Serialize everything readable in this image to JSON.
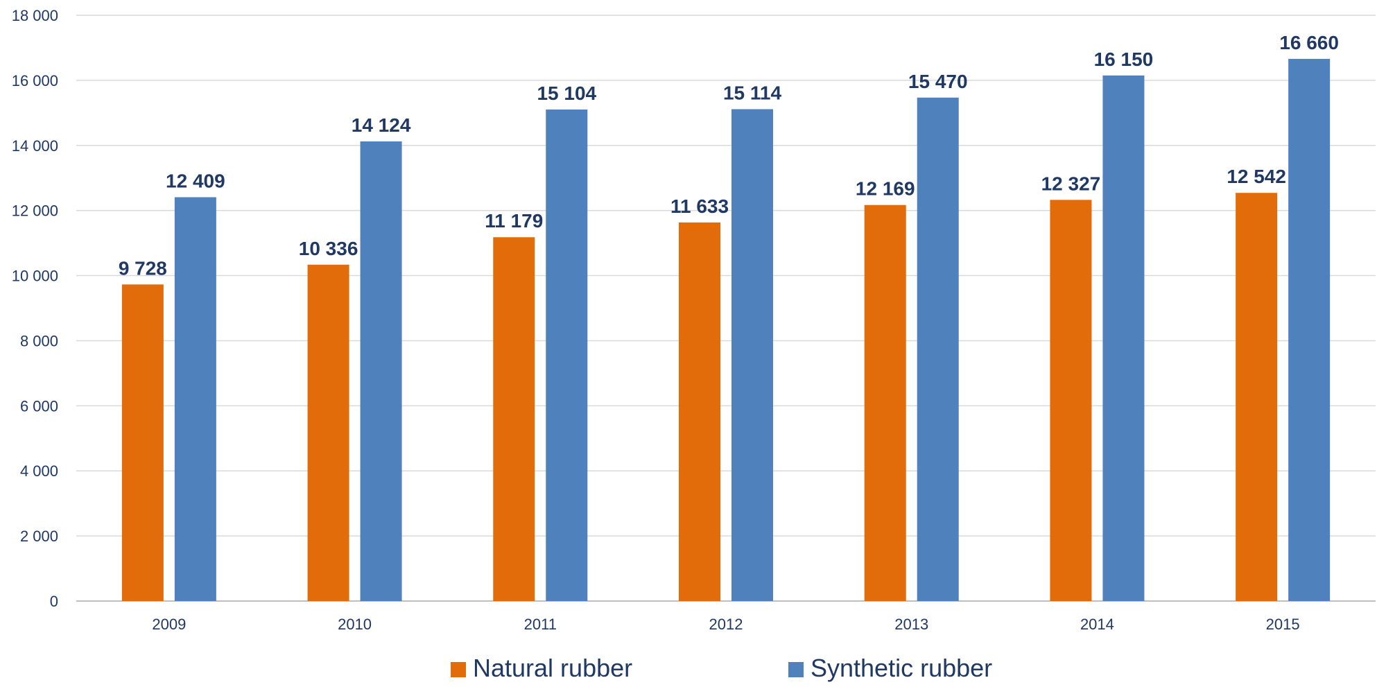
{
  "chart_data": {
    "type": "bar",
    "categories": [
      "2009",
      "2010",
      "2011",
      "2012",
      "2013",
      "2014",
      "2015"
    ],
    "series": [
      {
        "name": "Natural rubber",
        "color": "#e36c0a",
        "values": [
          9728,
          10336,
          11179,
          11633,
          12169,
          12327,
          12542
        ],
        "labels": [
          "9 728",
          "10 336",
          "11 179",
          "11 633",
          "12 169",
          "12 327",
          "12 542"
        ]
      },
      {
        "name": "Synthetic rubber",
        "color": "#4f81bd",
        "values": [
          12409,
          14124,
          15104,
          15114,
          15470,
          16150,
          16660
        ],
        "labels": [
          "12 409",
          "14 124",
          "15 104",
          "15 114",
          "15 470",
          "16 150",
          "16 660"
        ]
      }
    ],
    "y_ticks": [
      0,
      2000,
      4000,
      6000,
      8000,
      10000,
      12000,
      14000,
      16000,
      18000
    ],
    "y_tick_labels": [
      "0",
      "2 000",
      "4 000",
      "6 000",
      "8 000",
      "10 000",
      "12 000",
      "14 000",
      "16 000",
      "18 000"
    ],
    "ylim": [
      0,
      18000
    ],
    "grid": true,
    "legend_position": "bottom",
    "title": "",
    "xlabel": "",
    "ylabel": ""
  }
}
